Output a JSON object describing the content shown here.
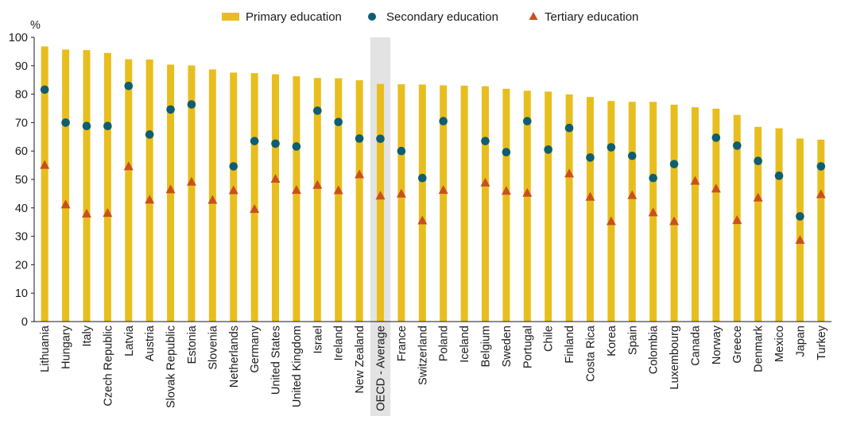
{
  "colors": {
    "primary": "#E8BE1E",
    "secondary": "#0E5E6F",
    "tertiary": "#C8501E",
    "highlight": "#E3E3E3",
    "axis": "#1a1a1a"
  },
  "chart_data": {
    "type": "bar",
    "ylabel": "%",
    "ylim": [
      0,
      100
    ],
    "yticks": [
      0,
      10,
      20,
      30,
      40,
      50,
      60,
      70,
      80,
      90,
      100
    ],
    "grid": false,
    "legend_position": "top",
    "highlight_category": "OECD - Average",
    "categories": [
      "Lithuania",
      "Hungary",
      "Italy",
      "Czech Republic",
      "Latvia",
      "Austria",
      "Slovak Republic",
      "Estonia",
      "Slovenia",
      "Netherlands",
      "Germany",
      "United States",
      "United Kingdom",
      "Israel",
      "Ireland",
      "New Zealand",
      "OECD - Average",
      "France",
      "Switzerland",
      "Poland",
      "Iceland",
      "Belgium",
      "Sweden",
      "Portugal",
      "Chile",
      "Finland",
      "Costa Rica",
      "Korea",
      "Spain",
      "Colombia",
      "Luxembourg",
      "Canada",
      "Norway",
      "Greece",
      "Denmark",
      "Mexico",
      "Japan",
      "Turkey"
    ],
    "series": [
      {
        "name": "Primary education",
        "marker": "bar",
        "values": [
          96.8,
          95.7,
          95.5,
          94.5,
          92.3,
          92.2,
          90.4,
          90.1,
          88.7,
          87.6,
          87.4,
          87.0,
          86.3,
          85.7,
          85.6,
          84.9,
          83.6,
          83.5,
          83.4,
          83.1,
          83.0,
          82.8,
          81.9,
          81.2,
          80.9,
          79.9,
          79.0,
          77.6,
          77.3,
          77.3,
          76.3,
          75.4,
          74.9,
          72.7,
          68.5,
          68.0,
          64.4,
          64.0
        ]
      },
      {
        "name": "Secondary education",
        "marker": "circle",
        "values": [
          81.6,
          70.0,
          68.8,
          68.8,
          82.9,
          65.8,
          74.6,
          76.4,
          null,
          54.6,
          63.5,
          62.6,
          61.6,
          74.2,
          70.2,
          64.4,
          64.3,
          60.0,
          50.5,
          70.5,
          null,
          63.5,
          59.6,
          70.5,
          60.5,
          68.1,
          57.7,
          61.3,
          58.3,
          50.5,
          55.4,
          null,
          64.7,
          61.9,
          56.5,
          51.3,
          37.0,
          54.6
        ]
      },
      {
        "name": "Tertiary education",
        "marker": "triangle",
        "values": [
          54.9,
          41.0,
          37.8,
          38.0,
          54.4,
          42.7,
          46.3,
          49.0,
          42.6,
          46.0,
          39.4,
          50.0,
          46.1,
          47.9,
          46.0,
          51.6,
          44.1,
          44.8,
          35.4,
          46.1,
          null,
          48.7,
          45.8,
          45.1,
          null,
          51.9,
          43.7,
          35.1,
          44.3,
          38.2,
          35.1,
          49.3,
          46.6,
          35.5,
          43.4,
          null,
          28.5,
          44.6
        ]
      }
    ]
  }
}
